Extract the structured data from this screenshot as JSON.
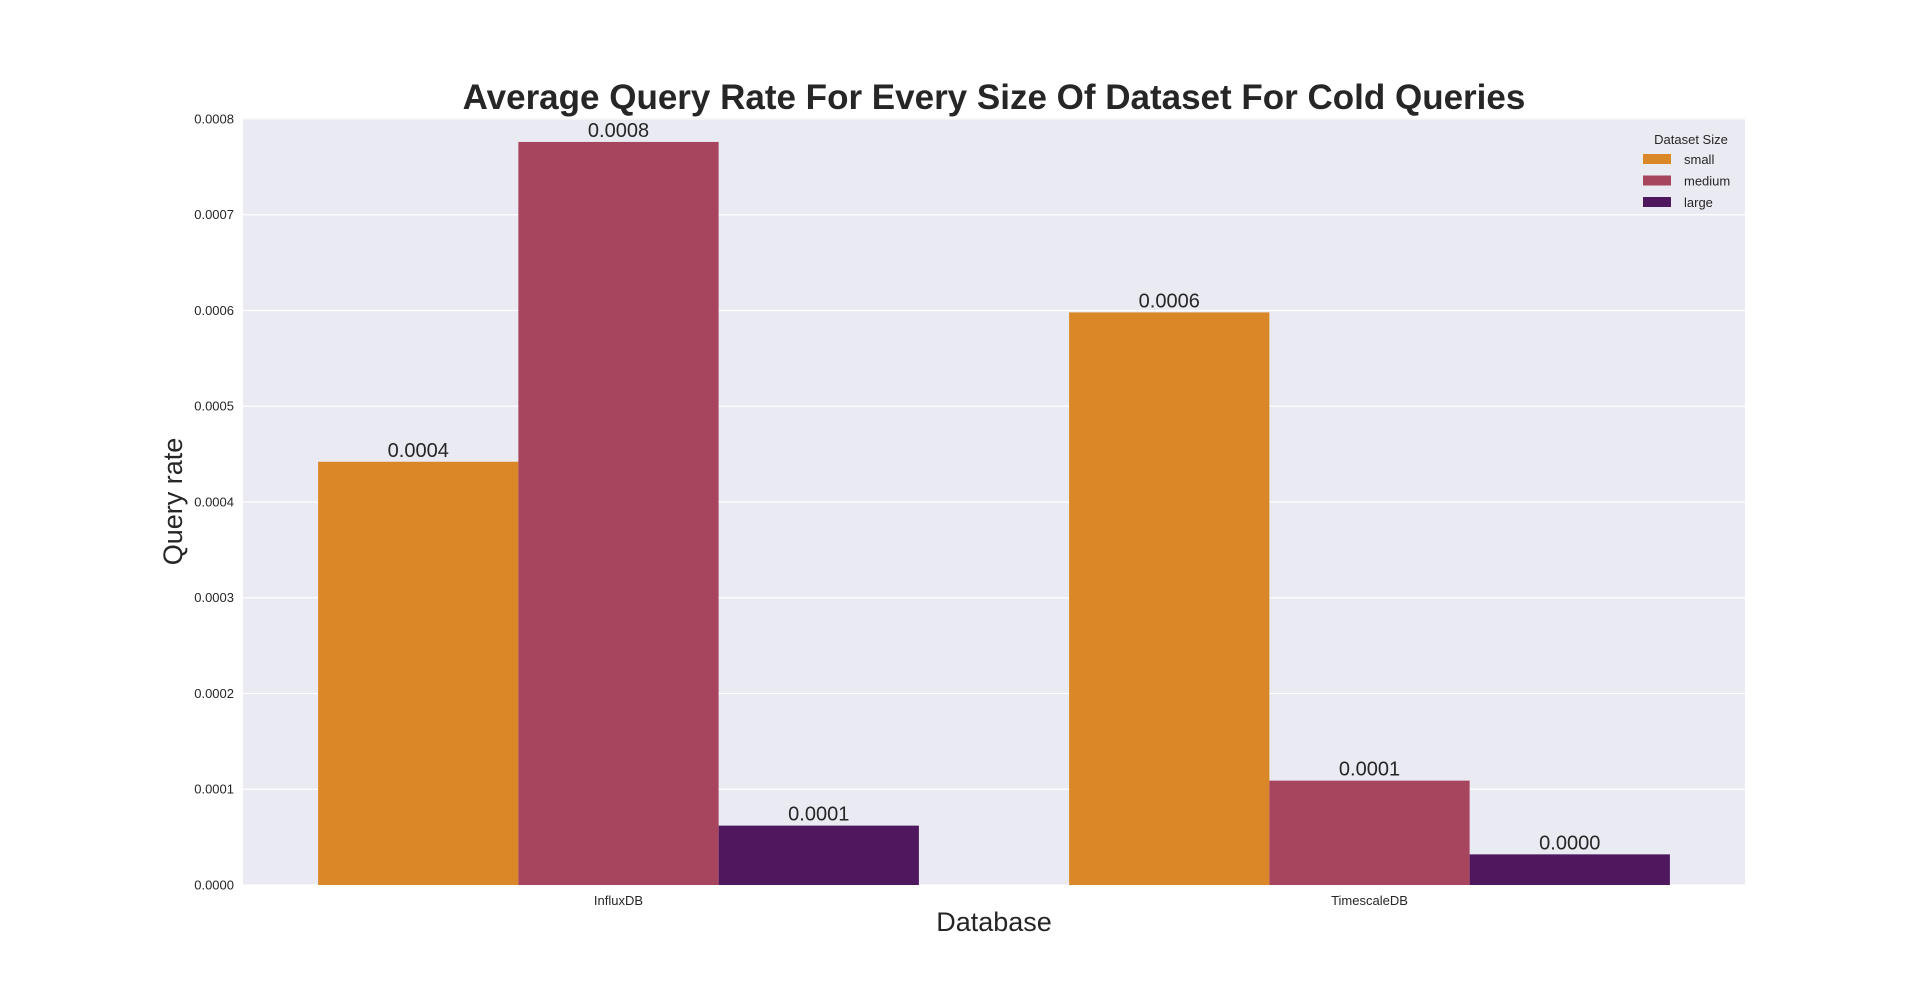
{
  "chart_data": {
    "type": "bar",
    "title": "Average Query Rate For Every Size Of Dataset For Cold Queries",
    "xlabel": "Database",
    "ylabel": "Query rate",
    "categories": [
      "InfluxDB",
      "TimescaleDB"
    ],
    "series": [
      {
        "name": "small",
        "color": "#da8827",
        "values": [
          0.000442,
          0.000598
        ],
        "labels": [
          "0.0004",
          "0.0006"
        ]
      },
      {
        "name": "medium",
        "color": "#a8455e",
        "values": [
          0.000776,
          0.000109
        ],
        "labels": [
          "0.0008",
          "0.0001"
        ]
      },
      {
        "name": "large",
        "color": "#4f185e",
        "values": [
          6.2e-05,
          3.2e-05
        ],
        "labels": [
          "0.0001",
          "0.0000"
        ]
      }
    ],
    "ylim": [
      0,
      0.000801
    ],
    "yticks": [
      0,
      0.0001,
      0.0002,
      0.0003,
      0.0004,
      0.0005,
      0.0006,
      0.0007,
      0.0008
    ],
    "ytick_labels": [
      "0.0000",
      "0.0001",
      "0.0002",
      "0.0003",
      "0.0004",
      "0.0005",
      "0.0006",
      "0.0007",
      "0.0008"
    ],
    "grid": true,
    "background": "#eaeaf2",
    "legend": {
      "title": "Dataset Size",
      "placement": "top-right"
    }
  }
}
